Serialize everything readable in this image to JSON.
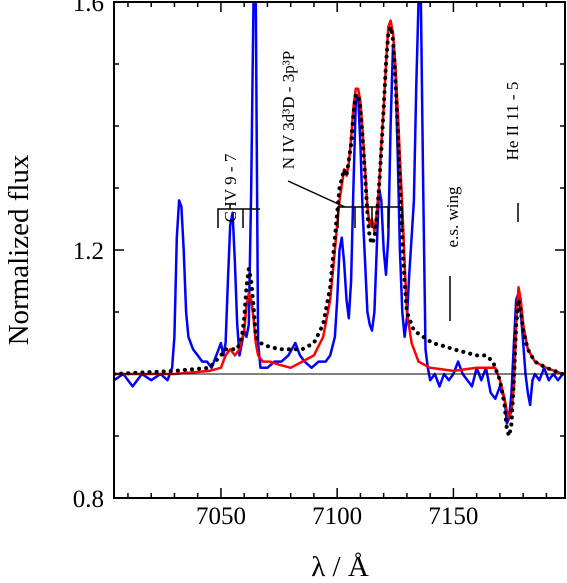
{
  "chart_data": {
    "type": "line",
    "xlabel": "λ / Å",
    "ylabel": "Normalized flux",
    "xlim": [
      7004,
      7198
    ],
    "ylim": [
      0.8,
      1.6
    ],
    "x_ticks": [
      7050,
      7100,
      7150
    ],
    "x_tick_labels": [
      "7050",
      "7100",
      "7150"
    ],
    "y_ticks": [
      0.8,
      1.2,
      1.6
    ],
    "y_tick_labels": [
      "0.8",
      "1.2",
      "1.6"
    ],
    "reference_line": 1.0,
    "annotations": {
      "civ": "C IV 9 - 7",
      "niv": "N IV 3d³D - 3p³P",
      "es": "e.s. wing",
      "heii": "He II 11 - 5"
    },
    "series": [
      {
        "color": "#0000ff",
        "style": "solid",
        "points": [
          [
            7004,
            0.99
          ],
          [
            7008,
            1.0
          ],
          [
            7012,
            0.98
          ],
          [
            7016,
            1.0
          ],
          [
            7020,
            0.99
          ],
          [
            7024,
            1.0
          ],
          [
            7027,
            0.99
          ],
          [
            7029,
            1.01
          ],
          [
            7030,
            1.06
          ],
          [
            7031,
            1.22
          ],
          [
            7032,
            1.28
          ],
          [
            7033,
            1.27
          ],
          [
            7034,
            1.2
          ],
          [
            7035,
            1.1
          ],
          [
            7036,
            1.06
          ],
          [
            7038,
            1.04
          ],
          [
            7040,
            1.03
          ],
          [
            7042,
            1.02
          ],
          [
            7044,
            1.02
          ],
          [
            7046,
            1.01
          ],
          [
            7048,
            1.03
          ],
          [
            7050,
            1.05
          ],
          [
            7051,
            1.03
          ],
          [
            7052,
            1.05
          ],
          [
            7053,
            1.15
          ],
          [
            7054,
            1.24
          ],
          [
            7055,
            1.26
          ],
          [
            7056,
            1.18
          ],
          [
            7057,
            1.08
          ],
          [
            7058,
            1.03
          ],
          [
            7059,
            1.05
          ],
          [
            7060,
            1.07
          ],
          [
            7061,
            1.06
          ],
          [
            7062,
            1.08
          ],
          [
            7063,
            1.3
          ],
          [
            7064,
            1.6
          ],
          [
            7065,
            1.6
          ],
          [
            7066,
            1.05
          ],
          [
            7067,
            1.01
          ],
          [
            7070,
            1.01
          ],
          [
            7073,
            1.02
          ],
          [
            7076,
            1.02
          ],
          [
            7079,
            1.03
          ],
          [
            7082,
            1.05
          ],
          [
            7084,
            1.03
          ],
          [
            7086,
            1.02
          ],
          [
            7089,
            1.01
          ],
          [
            7092,
            1.02
          ],
          [
            7095,
            1.02
          ],
          [
            7097,
            1.03
          ],
          [
            7099,
            1.06
          ],
          [
            7100,
            1.12
          ],
          [
            7101,
            1.2
          ],
          [
            7102,
            1.22
          ],
          [
            7103,
            1.18
          ],
          [
            7104,
            1.12
          ],
          [
            7105,
            1.09
          ],
          [
            7106,
            1.15
          ],
          [
            7107,
            1.3
          ],
          [
            7108,
            1.44
          ],
          [
            7109,
            1.45
          ],
          [
            7110,
            1.37
          ],
          [
            7111,
            1.26
          ],
          [
            7112,
            1.18
          ],
          [
            7113,
            1.1
          ],
          [
            7114,
            1.08
          ],
          [
            7115,
            1.07
          ],
          [
            7116,
            1.1
          ],
          [
            7117,
            1.2
          ],
          [
            7118,
            1.3
          ],
          [
            7119,
            1.28
          ],
          [
            7120,
            1.2
          ],
          [
            7121,
            1.16
          ],
          [
            7122,
            1.22
          ],
          [
            7123,
            1.4
          ],
          [
            7124,
            1.53
          ],
          [
            7125,
            1.5
          ],
          [
            7126,
            1.36
          ],
          [
            7127,
            1.2
          ],
          [
            7128,
            1.1
          ],
          [
            7129,
            1.06
          ],
          [
            7130,
            1.09
          ],
          [
            7131,
            1.16
          ],
          [
            7132,
            1.22
          ],
          [
            7133,
            1.28
          ],
          [
            7134,
            1.46
          ],
          [
            7135,
            1.6
          ],
          [
            7136,
            1.6
          ],
          [
            7137,
            1.3
          ],
          [
            7138,
            1.04
          ],
          [
            7139,
            1.01
          ],
          [
            7140,
            0.99
          ],
          [
            7142,
            1.0
          ],
          [
            7144,
            0.98
          ],
          [
            7146,
            1.0
          ],
          [
            7148,
            0.99
          ],
          [
            7150,
            1.0
          ],
          [
            7152,
            1.02
          ],
          [
            7154,
            1.0
          ],
          [
            7156,
            0.99
          ],
          [
            7158,
            0.98
          ],
          [
            7160,
            1.01
          ],
          [
            7162,
            0.99
          ],
          [
            7164,
            1.01
          ],
          [
            7166,
            0.97
          ],
          [
            7168,
            0.96
          ],
          [
            7170,
            0.98
          ],
          [
            7172,
            0.96
          ],
          [
            7173,
            0.92
          ],
          [
            7174,
            0.93
          ],
          [
            7175,
            0.97
          ],
          [
            7176,
            1.05
          ],
          [
            7177,
            1.12
          ],
          [
            7178,
            1.13
          ],
          [
            7179,
            1.1
          ],
          [
            7180,
            1.05
          ],
          [
            7181,
            1.0
          ],
          [
            7182,
            0.97
          ],
          [
            7183,
            0.95
          ],
          [
            7184,
            0.99
          ],
          [
            7185,
            1.0
          ],
          [
            7187,
            0.99
          ],
          [
            7189,
            1.01
          ],
          [
            7191,
            0.99
          ],
          [
            7193,
            1.0
          ],
          [
            7195,
            0.99
          ],
          [
            7197,
            1.0
          ]
        ]
      },
      {
        "color": "#ff0000",
        "style": "solid",
        "points": [
          [
            7004,
            1.0
          ],
          [
            7030,
            1.0
          ],
          [
            7045,
            1.005
          ],
          [
            7050,
            1.01
          ],
          [
            7052,
            1.03
          ],
          [
            7054,
            1.04
          ],
          [
            7056,
            1.03
          ],
          [
            7058,
            1.04
          ],
          [
            7060,
            1.07
          ],
          [
            7061,
            1.11
          ],
          [
            7062,
            1.13
          ],
          [
            7063,
            1.12
          ],
          [
            7064,
            1.09
          ],
          [
            7065,
            1.05
          ],
          [
            7066,
            1.03
          ],
          [
            7068,
            1.02
          ],
          [
            7071,
            1.02
          ],
          [
            7075,
            1.015
          ],
          [
            7080,
            1.01
          ],
          [
            7085,
            1.02
          ],
          [
            7090,
            1.03
          ],
          [
            7094,
            1.06
          ],
          [
            7097,
            1.12
          ],
          [
            7099,
            1.2
          ],
          [
            7101,
            1.28
          ],
          [
            7103,
            1.33
          ],
          [
            7104,
            1.32
          ],
          [
            7105,
            1.34
          ],
          [
            7106,
            1.38
          ],
          [
            7107,
            1.43
          ],
          [
            7108,
            1.46
          ],
          [
            7109,
            1.46
          ],
          [
            7110,
            1.44
          ],
          [
            7111,
            1.39
          ],
          [
            7112,
            1.33
          ],
          [
            7113,
            1.27
          ],
          [
            7114,
            1.24
          ],
          [
            7115,
            1.25
          ],
          [
            7116,
            1.23
          ],
          [
            7117,
            1.26
          ],
          [
            7118,
            1.3
          ],
          [
            7119,
            1.37
          ],
          [
            7120,
            1.43
          ],
          [
            7121,
            1.5
          ],
          [
            7122,
            1.56
          ],
          [
            7123,
            1.57
          ],
          [
            7124,
            1.55
          ],
          [
            7125,
            1.5
          ],
          [
            7126,
            1.43
          ],
          [
            7127,
            1.35
          ],
          [
            7128,
            1.27
          ],
          [
            7129,
            1.18
          ],
          [
            7130,
            1.1
          ],
          [
            7132,
            1.05
          ],
          [
            7135,
            1.02
          ],
          [
            7140,
            1.01
          ],
          [
            7150,
            1.005
          ],
          [
            7160,
            1.01
          ],
          [
            7165,
            1.01
          ],
          [
            7168,
            1.01
          ],
          [
            7170,
            0.99
          ],
          [
            7172,
            0.96
          ],
          [
            7173,
            0.94
          ],
          [
            7174,
            0.93
          ],
          [
            7175,
            0.94
          ],
          [
            7176,
            0.98
          ],
          [
            7177,
            1.08
          ],
          [
            7178,
            1.14
          ],
          [
            7179,
            1.12
          ],
          [
            7180,
            1.08
          ],
          [
            7182,
            1.04
          ],
          [
            7185,
            1.02
          ],
          [
            7190,
            1.01
          ],
          [
            7197,
            1.0
          ]
        ]
      },
      {
        "color": "#000000",
        "style": "dotted",
        "points": [
          [
            7004,
            1.0
          ],
          [
            7030,
            1.005
          ],
          [
            7045,
            1.01
          ],
          [
            7050,
            1.03
          ],
          [
            7052,
            1.04
          ],
          [
            7054,
            1.04
          ],
          [
            7057,
            1.04
          ],
          [
            7059,
            1.06
          ],
          [
            7060,
            1.09
          ],
          [
            7061,
            1.14
          ],
          [
            7062,
            1.17
          ],
          [
            7063,
            1.15
          ],
          [
            7064,
            1.11
          ],
          [
            7065,
            1.06
          ],
          [
            7067,
            1.05
          ],
          [
            7070,
            1.045
          ],
          [
            7075,
            1.04
          ],
          [
            7080,
            1.04
          ],
          [
            7085,
            1.04
          ],
          [
            7090,
            1.05
          ],
          [
            7094,
            1.08
          ],
          [
            7097,
            1.14
          ],
          [
            7099,
            1.22
          ],
          [
            7101,
            1.3
          ],
          [
            7103,
            1.33
          ],
          [
            7104,
            1.32
          ],
          [
            7106,
            1.37
          ],
          [
            7107,
            1.42
          ],
          [
            7108,
            1.45
          ],
          [
            7109,
            1.45
          ],
          [
            7110,
            1.43
          ],
          [
            7111,
            1.38
          ],
          [
            7112,
            1.32
          ],
          [
            7113,
            1.26
          ],
          [
            7114,
            1.22
          ],
          [
            7115,
            1.21
          ],
          [
            7116,
            1.22
          ],
          [
            7117,
            1.25
          ],
          [
            7118,
            1.3
          ],
          [
            7119,
            1.36
          ],
          [
            7120,
            1.43
          ],
          [
            7121,
            1.5
          ],
          [
            7122,
            1.55
          ],
          [
            7123,
            1.56
          ],
          [
            7124,
            1.54
          ],
          [
            7125,
            1.48
          ],
          [
            7126,
            1.4
          ],
          [
            7127,
            1.31
          ],
          [
            7128,
            1.22
          ],
          [
            7129,
            1.15
          ],
          [
            7130,
            1.1
          ],
          [
            7133,
            1.07
          ],
          [
            7137,
            1.06
          ],
          [
            7141,
            1.05
          ],
          [
            7146,
            1.045
          ],
          [
            7150,
            1.04
          ],
          [
            7155,
            1.035
          ],
          [
            7160,
            1.03
          ],
          [
            7164,
            1.03
          ],
          [
            7167,
            1.02
          ],
          [
            7170,
            0.99
          ],
          [
            7172,
            0.95
          ],
          [
            7173,
            0.91
          ],
          [
            7174,
            0.9
          ],
          [
            7175,
            0.92
          ],
          [
            7176,
            0.99
          ],
          [
            7177,
            1.08
          ],
          [
            7178,
            1.12
          ],
          [
            7179,
            1.1
          ],
          [
            7180,
            1.07
          ],
          [
            7182,
            1.04
          ],
          [
            7185,
            1.02
          ],
          [
            7190,
            1.01
          ],
          [
            7197,
            1.0
          ]
        ]
      }
    ]
  }
}
